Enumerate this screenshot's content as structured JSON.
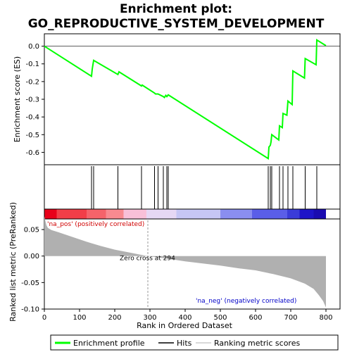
{
  "chart_data": {
    "type": "line",
    "title_line1": "Enrichment plot:",
    "title_line2": "GO_REPRODUCTIVE_SYSTEM_DEVELOPMENT",
    "es_panel": {
      "ylabel": "Enrichment score (ES)",
      "ylim": [
        -0.67,
        0.07
      ],
      "yticks": [
        0.0,
        -0.1,
        -0.2,
        -0.3,
        -0.4,
        -0.5,
        -0.6
      ],
      "ytick_labels": [
        "0.0",
        "-0.1",
        "-0.2",
        "-0.3",
        "-0.4",
        "-0.5",
        "-0.6"
      ],
      "series_name": "Enrichment profile",
      "color": "#00ff00",
      "points": [
        [
          0,
          0.0
        ],
        [
          134,
          -0.17
        ],
        [
          136,
          -0.13
        ],
        [
          140,
          -0.08
        ],
        [
          209,
          -0.16
        ],
        [
          212,
          -0.145
        ],
        [
          276,
          -0.225
        ],
        [
          278,
          -0.22
        ],
        [
          313,
          -0.265
        ],
        [
          316,
          -0.27
        ],
        [
          323,
          -0.27
        ],
        [
          338,
          -0.285
        ],
        [
          341,
          -0.29
        ],
        [
          345,
          -0.278
        ],
        [
          348,
          -0.285
        ],
        [
          352,
          -0.275
        ],
        [
          636,
          -0.635
        ],
        [
          638,
          -0.57
        ],
        [
          642,
          -0.56
        ],
        [
          644,
          -0.54
        ],
        [
          646,
          -0.5
        ],
        [
          666,
          -0.53
        ],
        [
          668,
          -0.45
        ],
        [
          676,
          -0.46
        ],
        [
          678,
          -0.38
        ],
        [
          689,
          -0.39
        ],
        [
          692,
          -0.31
        ],
        [
          704,
          -0.33
        ],
        [
          706,
          -0.14
        ],
        [
          739,
          -0.18
        ],
        [
          741,
          -0.07
        ],
        [
          772,
          -0.105
        ],
        [
          774,
          0.035
        ],
        [
          800,
          0.003
        ]
      ]
    },
    "hits": [
      134,
      140,
      209,
      276,
      313,
      323,
      338,
      348,
      352,
      636,
      642,
      646,
      668,
      678,
      692,
      706,
      741,
      774
    ],
    "ranked_panel": {
      "ylabel": "Ranked list metric (PreRanked)",
      "ylim": [
        -0.1,
        0.07
      ],
      "yticks": [
        0.05,
        0.0,
        -0.05,
        -0.1
      ],
      "ytick_labels": [
        "0.05",
        "0.00",
        "-0.05",
        "-0.10"
      ],
      "series_name": "Ranking metric scores",
      "metric_points": [
        [
          0,
          0.075
        ],
        [
          3,
          0.066
        ],
        [
          6,
          0.058
        ],
        [
          10,
          0.053
        ],
        [
          20,
          0.049
        ],
        [
          40,
          0.045
        ],
        [
          80,
          0.036
        ],
        [
          120,
          0.027
        ],
        [
          160,
          0.019
        ],
        [
          200,
          0.012
        ],
        [
          240,
          0.007
        ],
        [
          270,
          0.003
        ],
        [
          294,
          0.0
        ],
        [
          350,
          -0.005
        ],
        [
          400,
          -0.01
        ],
        [
          450,
          -0.014
        ],
        [
          500,
          -0.018
        ],
        [
          550,
          -0.023
        ],
        [
          600,
          -0.027
        ],
        [
          650,
          -0.034
        ],
        [
          700,
          -0.042
        ],
        [
          740,
          -0.052
        ],
        [
          765,
          -0.062
        ],
        [
          780,
          -0.074
        ],
        [
          792,
          -0.085
        ],
        [
          800,
          -0.097
        ]
      ],
      "zero_cross_label": "Zero cross at 294",
      "zero_cross": 294,
      "pos_label": "'na_pos' (positively correlated)",
      "neg_label": "'na_neg' (negatively correlated)"
    },
    "x_axis": {
      "xlabel": "Rank in Ordered Dataset",
      "xlim": [
        0,
        840
      ],
      "xticks": [
        0,
        100,
        200,
        300,
        400,
        500,
        600,
        700,
        800
      ],
      "xtick_labels": [
        "0",
        "100",
        "200",
        "300",
        "400",
        "500",
        "600",
        "700",
        "800"
      ],
      "max_rank": 800
    },
    "color_bar_segments": [
      {
        "start": 0,
        "end": 35,
        "color": "#e8001a"
      },
      {
        "start": 35,
        "end": 120,
        "color": "#f23e48"
      },
      {
        "start": 120,
        "end": 175,
        "color": "#f5636a"
      },
      {
        "start": 175,
        "end": 225,
        "color": "#f88a90"
      },
      {
        "start": 225,
        "end": 290,
        "color": "#f8c0d8"
      },
      {
        "start": 290,
        "end": 375,
        "color": "#e6d8f4"
      },
      {
        "start": 375,
        "end": 500,
        "color": "#c6c6f4"
      },
      {
        "start": 500,
        "end": 590,
        "color": "#8a8ef0"
      },
      {
        "start": 590,
        "end": 690,
        "color": "#5a5ee8"
      },
      {
        "start": 690,
        "end": 725,
        "color": "#3a3cd8"
      },
      {
        "start": 725,
        "end": 765,
        "color": "#1e14c8"
      },
      {
        "start": 765,
        "end": 800,
        "color": "#1a0bb0"
      }
    ],
    "legend": [
      {
        "label": "Enrichment profile",
        "color": "#00ff00"
      },
      {
        "label": "Hits",
        "color": "#000000"
      },
      {
        "label": "Ranking metric scores",
        "color": "#b0b0b0"
      }
    ],
    "pos_label_color": "#d00000",
    "neg_label_color": "#0000c8",
    "metric_fill_color": "#b0b0b0"
  }
}
